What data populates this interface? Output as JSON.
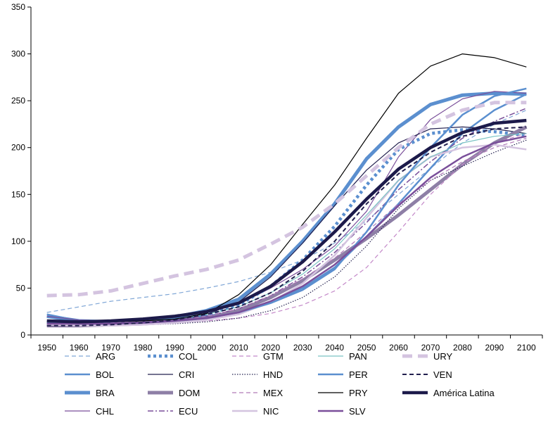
{
  "chart_data": {
    "type": "line",
    "title": "",
    "xlabel": "",
    "ylabel": "",
    "x": [
      1950,
      1960,
      1970,
      1980,
      1990,
      2000,
      2010,
      2020,
      2030,
      2040,
      2050,
      2060,
      2070,
      2080,
      2090,
      2100
    ],
    "ylim": [
      0,
      350
    ],
    "yticks": [
      0,
      50,
      100,
      150,
      200,
      250,
      300,
      350
    ],
    "grid": false,
    "legend_position": "bottom",
    "series": [
      {
        "name": "ARG",
        "color": "#7fa6d6",
        "style": "dashed-thin",
        "values": [
          24,
          30,
          36,
          40,
          44,
          50,
          57,
          67,
          80,
          98,
          122,
          150,
          178,
          205,
          225,
          240
        ]
      },
      {
        "name": "BOL",
        "color": "#5b8fcf",
        "style": "solid-medium",
        "values": [
          22,
          15,
          14,
          15,
          17,
          20,
          26,
          35,
          50,
          72,
          105,
          140,
          178,
          215,
          240,
          257
        ]
      },
      {
        "name": "BRA",
        "color": "#5b8fcf",
        "style": "solid-thick",
        "values": [
          20,
          15,
          14,
          16,
          19,
          26,
          38,
          65,
          100,
          140,
          188,
          222,
          246,
          256,
          258,
          257
        ]
      },
      {
        "name": "CHL",
        "color": "#7a4f9a",
        "style": "solid-thin",
        "values": [
          20,
          16,
          15,
          17,
          20,
          24,
          33,
          50,
          70,
          95,
          132,
          190,
          230,
          252,
          260,
          258
        ]
      },
      {
        "name": "COL",
        "color": "#5b8fcf",
        "style": "dotted-thick",
        "values": [
          12,
          12,
          13,
          14,
          17,
          22,
          32,
          52,
          80,
          116,
          160,
          198,
          215,
          219,
          217,
          213
        ]
      },
      {
        "name": "CRI",
        "color": "#23204f",
        "style": "solid-thin",
        "values": [
          12,
          12,
          13,
          14,
          16,
          22,
          35,
          62,
          98,
          138,
          176,
          205,
          220,
          222,
          220,
          215
        ]
      },
      {
        "name": "DOM",
        "color": "#8e7fa6",
        "style": "solid-thick",
        "values": [
          10,
          10,
          11,
          12,
          14,
          18,
          26,
          40,
          58,
          80,
          103,
          128,
          155,
          182,
          205,
          222
        ]
      },
      {
        "name": "ECU",
        "color": "#7a4f9a",
        "style": "dashdot-thin",
        "values": [
          12,
          12,
          13,
          14,
          16,
          20,
          28,
          42,
          62,
          88,
          120,
          155,
          185,
          210,
          228,
          242
        ]
      },
      {
        "name": "GTM",
        "color": "#c489c9",
        "style": "dashed-thin",
        "values": [
          11,
          11,
          11,
          12,
          13,
          15,
          18,
          23,
          32,
          47,
          72,
          110,
          150,
          182,
          205,
          215
        ]
      },
      {
        "name": "HND",
        "color": "#23204f",
        "style": "dotted-thin",
        "values": [
          10,
          10,
          10,
          11,
          12,
          14,
          18,
          26,
          40,
          62,
          95,
          135,
          165,
          180,
          195,
          208
        ]
      },
      {
        "name": "MEX",
        "color": "#b07ab8",
        "style": "dashed-thin",
        "values": [
          12,
          12,
          13,
          14,
          16,
          20,
          28,
          42,
          60,
          82,
          110,
          140,
          165,
          185,
          200,
          210
        ]
      },
      {
        "name": "NIC",
        "color": "#d4c4e0",
        "style": "solid-medium",
        "values": [
          11,
          10,
          10,
          11,
          13,
          16,
          22,
          35,
          55,
          85,
          125,
          165,
          190,
          200,
          203,
          198
        ]
      },
      {
        "name": "PAN",
        "color": "#7bc4c4",
        "style": "solid-thin",
        "values": [
          15,
          14,
          14,
          15,
          17,
          22,
          30,
          45,
          65,
          92,
          128,
          165,
          190,
          205,
          212,
          215
        ]
      },
      {
        "name": "PER",
        "color": "#5b8fcf",
        "style": "solid-medium",
        "values": [
          13,
          12,
          12,
          13,
          15,
          18,
          24,
          34,
          48,
          70,
          110,
          160,
          200,
          235,
          255,
          263
        ]
      },
      {
        "name": "PRY",
        "color": "#000000",
        "style": "solid-thin",
        "values": [
          14,
          13,
          14,
          15,
          17,
          23,
          43,
          75,
          118,
          160,
          210,
          258,
          287,
          300,
          296,
          286
        ]
      },
      {
        "name": "SLV",
        "color": "#7a4f9a",
        "style": "solid-medium",
        "values": [
          12,
          12,
          12,
          13,
          15,
          18,
          24,
          36,
          52,
          75,
          105,
          138,
          168,
          190,
          205,
          212
        ]
      },
      {
        "name": "URY",
        "color": "#d4c4e0",
        "style": "dashed-thick",
        "values": [
          42,
          43,
          47,
          55,
          63,
          70,
          80,
          97,
          115,
          140,
          170,
          200,
          225,
          240,
          248,
          248
        ]
      },
      {
        "name": "VEN",
        "color": "#23204f",
        "style": "dashed-medium",
        "values": [
          10,
          10,
          11,
          13,
          16,
          22,
          30,
          45,
          68,
          100,
          140,
          172,
          195,
          212,
          220,
          222
        ]
      },
      {
        "name": "América Latina",
        "color": "#1c1a4a",
        "style": "solid-xthick",
        "values": [
          15,
          14,
          15,
          17,
          20,
          25,
          34,
          52,
          78,
          110,
          145,
          177,
          200,
          216,
          226,
          229
        ]
      }
    ]
  }
}
